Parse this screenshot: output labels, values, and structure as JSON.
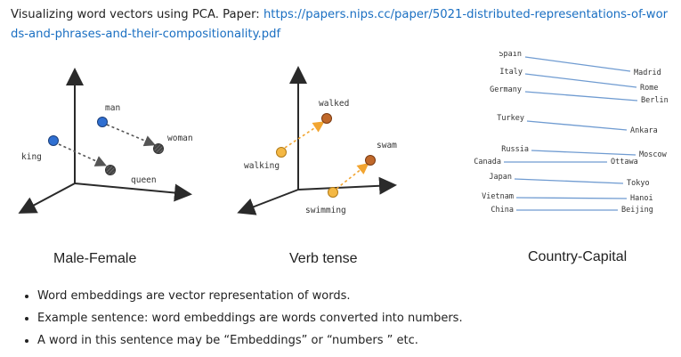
{
  "intro": {
    "text": "Visualizing word vectors using PCA. Paper: ",
    "link": "https://papers.nips.cc/paper/5021-distributed-representations-of-words-and-phrases-and-their-compositionality.pdf"
  },
  "figures": {
    "male_female": {
      "caption": "Male-Female",
      "words": {
        "man": "man",
        "woman": "woman",
        "king": "king",
        "queen": "queen"
      },
      "point_color": "#2f6fd1",
      "target_color": "#555555"
    },
    "verb_tense": {
      "caption": "Verb tense",
      "words": {
        "walked": "walked",
        "walking": "walking",
        "swam": "swam",
        "swimming": "swimming"
      },
      "past_color": "#c0682a",
      "present_color": "#f4b844"
    },
    "country_capital": {
      "caption": "Country-Capital",
      "line_color": "#6f9bd1",
      "pairs": [
        {
          "country": "Spain",
          "capital": "Madrid"
        },
        {
          "country": "Italy",
          "capital": "Rome"
        },
        {
          "country": "Germany",
          "capital": "Berlin"
        },
        {
          "country": "Turkey",
          "capital": "Ankara"
        },
        {
          "country": "Russia",
          "capital": "Moscow"
        },
        {
          "country": "Canada",
          "capital": "Ottawa"
        },
        {
          "country": "Japan",
          "capital": "Tokyo"
        },
        {
          "country": "Vietnam",
          "capital": "Hanoi"
        },
        {
          "country": "China",
          "capital": "Beijing"
        }
      ]
    }
  },
  "bullets": [
    "Word embeddings are vector representation of words.",
    "Example sentence: word embeddings are words converted into numbers.",
    "A word in this sentence may be “Embeddings” or “numbers ” etc."
  ]
}
